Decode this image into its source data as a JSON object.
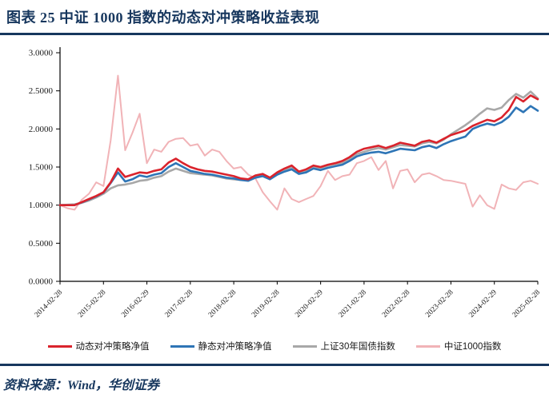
{
  "header": {
    "title": "图表 25  中证 1000 指数的动态对冲策略收益表现"
  },
  "footer": {
    "source_label": "资料来源：Wind，华创证券"
  },
  "colors": {
    "accent_navy": "#17375E",
    "series_red": "#DA232C",
    "series_blue": "#2E75B6",
    "series_gray": "#A8A8A8",
    "series_pink": "#F1B3B7",
    "axis": "#000000",
    "tick_text": "#1a1a1a"
  },
  "chart_data": {
    "type": "line",
    "title": "",
    "xlabel": "",
    "ylabel": "",
    "ylim": [
      0,
      3
    ],
    "grid": false,
    "legend_position": "bottom",
    "x_start": "2014-02-28",
    "x_step_months": 2,
    "x_tick_labels": [
      "2014-02-28",
      "2015-02-28",
      "2016-02-29",
      "2017-02-28",
      "2018-02-28",
      "2019-02-28",
      "2020-02-29",
      "2021-02-28",
      "2022-02-28",
      "2023-02-28",
      "2024-02-29",
      "2025-02-28"
    ],
    "y_tick_values": [
      0,
      0.5,
      1,
      1.5,
      2,
      2.5,
      3
    ],
    "y_tick_labels": [
      "0.0000",
      "0.5000",
      "1.0000",
      "1.5000",
      "2.0000",
      "2.5000",
      "3.0000"
    ],
    "series": [
      {
        "name": "动态对冲策略净值",
        "color": "#DA232C",
        "stroke_width": 2.6,
        "values": [
          1.0,
          1.0,
          1.0,
          1.04,
          1.08,
          1.12,
          1.17,
          1.3,
          1.48,
          1.37,
          1.4,
          1.43,
          1.42,
          1.45,
          1.47,
          1.56,
          1.61,
          1.55,
          1.5,
          1.47,
          1.45,
          1.44,
          1.42,
          1.4,
          1.38,
          1.35,
          1.34,
          1.39,
          1.41,
          1.36,
          1.43,
          1.48,
          1.52,
          1.44,
          1.47,
          1.52,
          1.5,
          1.53,
          1.55,
          1.58,
          1.63,
          1.7,
          1.74,
          1.76,
          1.78,
          1.75,
          1.78,
          1.82,
          1.8,
          1.78,
          1.83,
          1.85,
          1.82,
          1.87,
          1.92,
          1.95,
          1.98,
          2.04,
          2.08,
          2.12,
          2.1,
          2.15,
          2.25,
          2.42,
          2.36,
          2.44,
          2.39
        ]
      },
      {
        "name": "静态对冲策略净值",
        "color": "#2E75B6",
        "stroke_width": 2.6,
        "values": [
          1.0,
          1.0,
          1.0,
          1.035,
          1.075,
          1.115,
          1.165,
          1.29,
          1.43,
          1.31,
          1.34,
          1.39,
          1.37,
          1.4,
          1.42,
          1.5,
          1.55,
          1.5,
          1.45,
          1.43,
          1.41,
          1.4,
          1.38,
          1.36,
          1.35,
          1.33,
          1.32,
          1.36,
          1.38,
          1.34,
          1.4,
          1.44,
          1.47,
          1.41,
          1.43,
          1.48,
          1.46,
          1.49,
          1.51,
          1.53,
          1.58,
          1.64,
          1.67,
          1.69,
          1.7,
          1.68,
          1.71,
          1.74,
          1.73,
          1.72,
          1.76,
          1.78,
          1.75,
          1.8,
          1.84,
          1.87,
          1.9,
          2.0,
          2.04,
          2.07,
          2.05,
          2.09,
          2.16,
          2.28,
          2.22,
          2.3,
          2.24
        ]
      },
      {
        "name": "上证30年国债指数",
        "color": "#A8A8A8",
        "stroke_width": 2.6,
        "values": [
          1.0,
          1.005,
          1.01,
          1.03,
          1.06,
          1.1,
          1.15,
          1.22,
          1.26,
          1.27,
          1.29,
          1.32,
          1.33,
          1.36,
          1.38,
          1.44,
          1.48,
          1.45,
          1.42,
          1.41,
          1.4,
          1.39,
          1.37,
          1.35,
          1.34,
          1.33,
          1.33,
          1.37,
          1.39,
          1.35,
          1.41,
          1.46,
          1.5,
          1.43,
          1.45,
          1.5,
          1.49,
          1.52,
          1.54,
          1.55,
          1.61,
          1.67,
          1.7,
          1.73,
          1.75,
          1.73,
          1.76,
          1.79,
          1.78,
          1.77,
          1.81,
          1.83,
          1.81,
          1.86,
          1.93,
          1.99,
          2.05,
          2.12,
          2.2,
          2.27,
          2.25,
          2.28,
          2.38,
          2.46,
          2.41,
          2.49,
          2.4
        ]
      },
      {
        "name": "中证1000指数",
        "color": "#F1B3B7",
        "stroke_width": 2,
        "values": [
          1.0,
          0.96,
          0.94,
          1.07,
          1.15,
          1.3,
          1.25,
          1.85,
          2.7,
          1.72,
          1.95,
          2.2,
          1.55,
          1.73,
          1.7,
          1.83,
          1.87,
          1.88,
          1.78,
          1.8,
          1.65,
          1.73,
          1.7,
          1.58,
          1.48,
          1.5,
          1.4,
          1.35,
          1.17,
          1.05,
          0.94,
          1.22,
          1.08,
          1.04,
          1.08,
          1.12,
          1.25,
          1.45,
          1.33,
          1.38,
          1.4,
          1.55,
          1.58,
          1.63,
          1.46,
          1.58,
          1.22,
          1.45,
          1.47,
          1.3,
          1.4,
          1.42,
          1.38,
          1.33,
          1.32,
          1.3,
          1.28,
          0.98,
          1.13,
          1.0,
          0.95,
          1.27,
          1.22,
          1.2,
          1.3,
          1.32,
          1.28
        ]
      }
    ]
  }
}
